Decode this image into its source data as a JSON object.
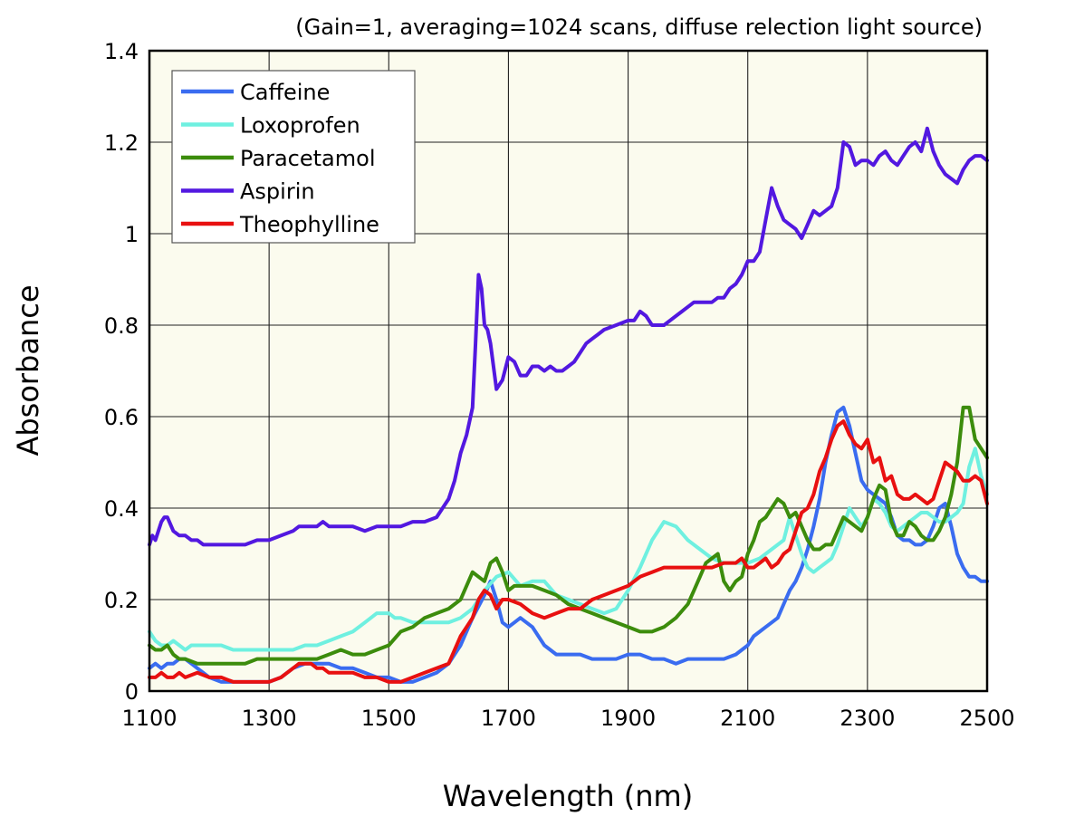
{
  "chart_data": {
    "type": "line",
    "title": "",
    "subtitle": "(Gain=1, averaging=1024 scans, diffuse relection light source)",
    "xlabel": "Wavelength (nm)",
    "ylabel": "Absorbance",
    "xlim": [
      1100,
      2500
    ],
    "ylim": [
      0,
      1.4
    ],
    "xticks": [
      1100,
      1300,
      1500,
      1700,
      1900,
      2100,
      2300,
      2500
    ],
    "yticks": [
      0,
      0.2,
      0.4,
      0.6,
      0.8,
      1,
      1.2,
      1.4
    ],
    "xtick_labels": [
      "1100",
      "1300",
      "1500",
      "1700",
      "1900",
      "2100",
      "2300",
      "2500"
    ],
    "ytick_labels": [
      "0",
      "0.2",
      "0.4",
      "0.6",
      "0.8",
      "1",
      "1.2",
      "1.4"
    ],
    "grid": true,
    "legend_position": "top-left",
    "plot_background": "#fbfbee",
    "series": [
      {
        "name": "Caffeine",
        "color": "#3a6cf0",
        "x": [
          1100,
          1110,
          1120,
          1130,
          1140,
          1150,
          1160,
          1170,
          1180,
          1190,
          1200,
          1220,
          1240,
          1260,
          1280,
          1300,
          1320,
          1340,
          1360,
          1380,
          1400,
          1420,
          1440,
          1460,
          1480,
          1500,
          1520,
          1540,
          1560,
          1580,
          1600,
          1620,
          1640,
          1660,
          1670,
          1680,
          1690,
          1700,
          1710,
          1720,
          1740,
          1760,
          1780,
          1800,
          1820,
          1840,
          1860,
          1880,
          1900,
          1920,
          1940,
          1960,
          1980,
          2000,
          2020,
          2040,
          2060,
          2080,
          2100,
          2110,
          2120,
          2130,
          2140,
          2150,
          2160,
          2170,
          2180,
          2190,
          2200,
          2210,
          2220,
          2230,
          2240,
          2250,
          2260,
          2270,
          2280,
          2290,
          2300,
          2310,
          2320,
          2330,
          2340,
          2350,
          2360,
          2370,
          2380,
          2390,
          2400,
          2410,
          2420,
          2430,
          2440,
          2450,
          2460,
          2470,
          2480,
          2490,
          2500
        ],
        "y": [
          0.05,
          0.06,
          0.05,
          0.06,
          0.06,
          0.07,
          0.07,
          0.06,
          0.05,
          0.04,
          0.03,
          0.02,
          0.02,
          0.02,
          0.02,
          0.02,
          0.03,
          0.05,
          0.06,
          0.06,
          0.06,
          0.05,
          0.05,
          0.04,
          0.03,
          0.03,
          0.02,
          0.02,
          0.03,
          0.04,
          0.06,
          0.1,
          0.16,
          0.21,
          0.24,
          0.2,
          0.15,
          0.14,
          0.15,
          0.16,
          0.14,
          0.1,
          0.08,
          0.08,
          0.08,
          0.07,
          0.07,
          0.07,
          0.08,
          0.08,
          0.07,
          0.07,
          0.06,
          0.07,
          0.07,
          0.07,
          0.07,
          0.08,
          0.1,
          0.12,
          0.13,
          0.14,
          0.15,
          0.16,
          0.19,
          0.22,
          0.24,
          0.27,
          0.31,
          0.36,
          0.42,
          0.5,
          0.56,
          0.61,
          0.62,
          0.58,
          0.52,
          0.46,
          0.44,
          0.43,
          0.42,
          0.41,
          0.38,
          0.34,
          0.33,
          0.33,
          0.32,
          0.32,
          0.33,
          0.36,
          0.4,
          0.41,
          0.36,
          0.3,
          0.27,
          0.25,
          0.25,
          0.24,
          0.24
        ]
      },
      {
        "name": "Loxoprofen",
        "color": "#6ff0e0",
        "x": [
          1100,
          1110,
          1120,
          1130,
          1140,
          1150,
          1160,
          1170,
          1180,
          1200,
          1220,
          1240,
          1260,
          1280,
          1300,
          1320,
          1340,
          1360,
          1380,
          1400,
          1420,
          1440,
          1460,
          1480,
          1490,
          1500,
          1510,
          1520,
          1540,
          1560,
          1580,
          1600,
          1620,
          1640,
          1660,
          1680,
          1700,
          1720,
          1740,
          1760,
          1780,
          1800,
          1820,
          1840,
          1860,
          1880,
          1900,
          1920,
          1940,
          1960,
          1980,
          2000,
          2020,
          2040,
          2060,
          2080,
          2100,
          2120,
          2140,
          2160,
          2170,
          2180,
          2190,
          2200,
          2210,
          2220,
          2230,
          2240,
          2250,
          2260,
          2270,
          2280,
          2290,
          2300,
          2310,
          2320,
          2330,
          2340,
          2350,
          2360,
          2370,
          2380,
          2390,
          2400,
          2410,
          2420,
          2430,
          2440,
          2450,
          2460,
          2470,
          2480,
          2490,
          2500
        ],
        "y": [
          0.13,
          0.11,
          0.1,
          0.1,
          0.11,
          0.1,
          0.09,
          0.1,
          0.1,
          0.1,
          0.1,
          0.09,
          0.09,
          0.09,
          0.09,
          0.09,
          0.09,
          0.1,
          0.1,
          0.11,
          0.12,
          0.13,
          0.15,
          0.17,
          0.17,
          0.17,
          0.16,
          0.16,
          0.15,
          0.15,
          0.15,
          0.15,
          0.16,
          0.18,
          0.22,
          0.25,
          0.26,
          0.23,
          0.24,
          0.24,
          0.21,
          0.2,
          0.19,
          0.18,
          0.17,
          0.18,
          0.22,
          0.27,
          0.33,
          0.37,
          0.36,
          0.33,
          0.31,
          0.29,
          0.28,
          0.28,
          0.28,
          0.29,
          0.31,
          0.33,
          0.38,
          0.34,
          0.3,
          0.27,
          0.26,
          0.27,
          0.28,
          0.29,
          0.32,
          0.36,
          0.4,
          0.38,
          0.36,
          0.38,
          0.42,
          0.41,
          0.39,
          0.36,
          0.35,
          0.36,
          0.37,
          0.38,
          0.39,
          0.39,
          0.38,
          0.37,
          0.37,
          0.38,
          0.39,
          0.41,
          0.49,
          0.53,
          0.47,
          0.43
        ]
      },
      {
        "name": "Paracetamol",
        "color": "#3c8c0c",
        "x": [
          1100,
          1110,
          1120,
          1130,
          1140,
          1150,
          1160,
          1180,
          1200,
          1220,
          1240,
          1260,
          1280,
          1300,
          1320,
          1340,
          1360,
          1380,
          1400,
          1420,
          1440,
          1460,
          1480,
          1500,
          1520,
          1540,
          1560,
          1580,
          1600,
          1620,
          1640,
          1650,
          1660,
          1670,
          1680,
          1690,
          1700,
          1710,
          1720,
          1740,
          1760,
          1780,
          1800,
          1820,
          1840,
          1860,
          1880,
          1900,
          1920,
          1940,
          1960,
          1980,
          2000,
          2010,
          2020,
          2030,
          2040,
          2050,
          2060,
          2070,
          2080,
          2090,
          2100,
          2110,
          2120,
          2130,
          2140,
          2150,
          2160,
          2170,
          2180,
          2190,
          2200,
          2210,
          2220,
          2230,
          2240,
          2250,
          2260,
          2270,
          2280,
          2290,
          2300,
          2310,
          2320,
          2330,
          2340,
          2350,
          2360,
          2370,
          2380,
          2390,
          2400,
          2410,
          2420,
          2430,
          2440,
          2450,
          2460,
          2470,
          2480,
          2490,
          2500
        ],
        "y": [
          0.1,
          0.09,
          0.09,
          0.1,
          0.08,
          0.07,
          0.07,
          0.06,
          0.06,
          0.06,
          0.06,
          0.06,
          0.07,
          0.07,
          0.07,
          0.07,
          0.07,
          0.07,
          0.08,
          0.09,
          0.08,
          0.08,
          0.09,
          0.1,
          0.13,
          0.14,
          0.16,
          0.17,
          0.18,
          0.2,
          0.26,
          0.25,
          0.24,
          0.28,
          0.29,
          0.26,
          0.22,
          0.23,
          0.23,
          0.23,
          0.22,
          0.21,
          0.19,
          0.18,
          0.17,
          0.16,
          0.15,
          0.14,
          0.13,
          0.13,
          0.14,
          0.16,
          0.19,
          0.22,
          0.25,
          0.28,
          0.29,
          0.3,
          0.24,
          0.22,
          0.24,
          0.25,
          0.3,
          0.33,
          0.37,
          0.38,
          0.4,
          0.42,
          0.41,
          0.38,
          0.39,
          0.36,
          0.33,
          0.31,
          0.31,
          0.32,
          0.32,
          0.35,
          0.38,
          0.37,
          0.36,
          0.35,
          0.38,
          0.42,
          0.45,
          0.44,
          0.37,
          0.34,
          0.34,
          0.37,
          0.36,
          0.34,
          0.33,
          0.33,
          0.35,
          0.38,
          0.43,
          0.5,
          0.62,
          0.62,
          0.55,
          0.53,
          0.51
        ]
      },
      {
        "name": "Aspirin",
        "color": "#5218e0",
        "x": [
          1100,
          1105,
          1110,
          1115,
          1120,
          1125,
          1130,
          1140,
          1150,
          1160,
          1170,
          1180,
          1190,
          1200,
          1220,
          1240,
          1260,
          1280,
          1300,
          1320,
          1340,
          1350,
          1360,
          1370,
          1380,
          1390,
          1400,
          1420,
          1440,
          1460,
          1480,
          1500,
          1520,
          1540,
          1560,
          1580,
          1600,
          1610,
          1620,
          1630,
          1640,
          1645,
          1650,
          1655,
          1660,
          1665,
          1670,
          1680,
          1690,
          1700,
          1710,
          1720,
          1730,
          1740,
          1750,
          1760,
          1770,
          1780,
          1790,
          1800,
          1810,
          1820,
          1830,
          1840,
          1850,
          1860,
          1880,
          1900,
          1910,
          1920,
          1930,
          1940,
          1950,
          1960,
          1970,
          1980,
          1990,
          2000,
          2010,
          2020,
          2030,
          2040,
          2050,
          2060,
          2070,
          2080,
          2090,
          2100,
          2110,
          2120,
          2130,
          2140,
          2150,
          2160,
          2170,
          2180,
          2190,
          2200,
          2210,
          2220,
          2230,
          2240,
          2250,
          2260,
          2270,
          2280,
          2290,
          2300,
          2310,
          2320,
          2330,
          2340,
          2350,
          2360,
          2370,
          2380,
          2390,
          2400,
          2410,
          2420,
          2430,
          2440,
          2450,
          2460,
          2470,
          2480,
          2490,
          2500
        ],
        "y": [
          0.32,
          0.34,
          0.33,
          0.35,
          0.37,
          0.38,
          0.38,
          0.35,
          0.34,
          0.34,
          0.33,
          0.33,
          0.32,
          0.32,
          0.32,
          0.32,
          0.32,
          0.33,
          0.33,
          0.34,
          0.35,
          0.36,
          0.36,
          0.36,
          0.36,
          0.37,
          0.36,
          0.36,
          0.36,
          0.35,
          0.36,
          0.36,
          0.36,
          0.37,
          0.37,
          0.38,
          0.42,
          0.46,
          0.52,
          0.56,
          0.62,
          0.76,
          0.91,
          0.88,
          0.8,
          0.79,
          0.76,
          0.66,
          0.68,
          0.73,
          0.72,
          0.69,
          0.69,
          0.71,
          0.71,
          0.7,
          0.71,
          0.7,
          0.7,
          0.71,
          0.72,
          0.74,
          0.76,
          0.77,
          0.78,
          0.79,
          0.8,
          0.81,
          0.81,
          0.83,
          0.82,
          0.8,
          0.8,
          0.8,
          0.81,
          0.82,
          0.83,
          0.84,
          0.85,
          0.85,
          0.85,
          0.85,
          0.86,
          0.86,
          0.88,
          0.89,
          0.91,
          0.94,
          0.94,
          0.96,
          1.03,
          1.1,
          1.06,
          1.03,
          1.02,
          1.01,
          0.99,
          1.02,
          1.05,
          1.04,
          1.05,
          1.06,
          1.1,
          1.2,
          1.19,
          1.15,
          1.16,
          1.16,
          1.15,
          1.17,
          1.18,
          1.16,
          1.15,
          1.17,
          1.19,
          1.2,
          1.18,
          1.23,
          1.18,
          1.15,
          1.13,
          1.12,
          1.11,
          1.14,
          1.16,
          1.17,
          1.17,
          1.16
        ]
      },
      {
        "name": "Theophylline",
        "color": "#e81010",
        "x": [
          1100,
          1110,
          1120,
          1130,
          1140,
          1150,
          1160,
          1180,
          1200,
          1220,
          1240,
          1260,
          1280,
          1300,
          1320,
          1340,
          1350,
          1360,
          1370,
          1380,
          1390,
          1400,
          1420,
          1440,
          1460,
          1480,
          1500,
          1520,
          1540,
          1560,
          1580,
          1600,
          1610,
          1620,
          1630,
          1640,
          1650,
          1660,
          1670,
          1680,
          1690,
          1700,
          1720,
          1740,
          1760,
          1780,
          1800,
          1820,
          1840,
          1860,
          1880,
          1900,
          1920,
          1940,
          1960,
          1980,
          2000,
          2020,
          2040,
          2060,
          2080,
          2090,
          2100,
          2110,
          2120,
          2130,
          2140,
          2150,
          2160,
          2170,
          2180,
          2190,
          2200,
          2210,
          2220,
          2230,
          2240,
          2250,
          2260,
          2270,
          2280,
          2290,
          2300,
          2310,
          2320,
          2330,
          2340,
          2350,
          2360,
          2370,
          2380,
          2390,
          2400,
          2410,
          2420,
          2430,
          2440,
          2450,
          2460,
          2470,
          2480,
          2490,
          2500
        ],
        "y": [
          0.03,
          0.03,
          0.04,
          0.03,
          0.03,
          0.04,
          0.03,
          0.04,
          0.03,
          0.03,
          0.02,
          0.02,
          0.02,
          0.02,
          0.03,
          0.05,
          0.06,
          0.06,
          0.06,
          0.05,
          0.05,
          0.04,
          0.04,
          0.04,
          0.03,
          0.03,
          0.02,
          0.02,
          0.03,
          0.04,
          0.05,
          0.06,
          0.09,
          0.12,
          0.14,
          0.16,
          0.2,
          0.22,
          0.21,
          0.18,
          0.2,
          0.2,
          0.19,
          0.17,
          0.16,
          0.17,
          0.18,
          0.18,
          0.2,
          0.21,
          0.22,
          0.23,
          0.25,
          0.26,
          0.27,
          0.27,
          0.27,
          0.27,
          0.27,
          0.28,
          0.28,
          0.29,
          0.27,
          0.27,
          0.28,
          0.29,
          0.27,
          0.28,
          0.3,
          0.31,
          0.35,
          0.39,
          0.4,
          0.43,
          0.48,
          0.51,
          0.55,
          0.58,
          0.59,
          0.56,
          0.54,
          0.53,
          0.55,
          0.5,
          0.51,
          0.46,
          0.47,
          0.43,
          0.42,
          0.42,
          0.43,
          0.42,
          0.41,
          0.42,
          0.46,
          0.5,
          0.49,
          0.48,
          0.46,
          0.46,
          0.47,
          0.46,
          0.41
        ]
      }
    ]
  }
}
